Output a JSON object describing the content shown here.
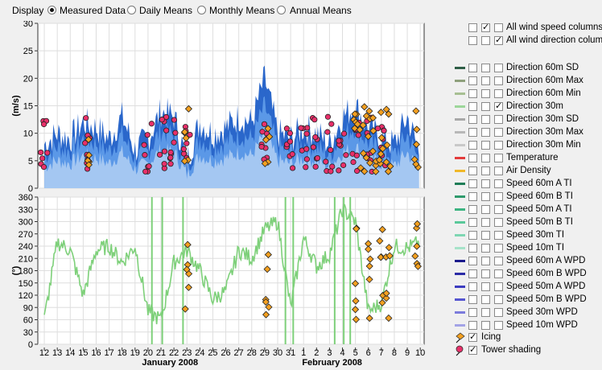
{
  "display": {
    "label": "Display",
    "options": [
      {
        "label": "Measured Data",
        "selected": true
      },
      {
        "label": "Daily Means",
        "selected": false
      },
      {
        "label": "Monthly Means",
        "selected": false
      },
      {
        "label": "Annual Means",
        "selected": false
      }
    ]
  },
  "top_checks": [
    {
      "label": "All wind speed columns",
      "checks": [
        false,
        true,
        false
      ]
    },
    {
      "label": "All wind direction columns",
      "checks": [
        false,
        false,
        true
      ]
    }
  ],
  "legend": [
    {
      "label": "Direction 60m SD",
      "color": "#2e5e46",
      "checks": [
        false,
        false,
        false
      ]
    },
    {
      "label": "Direction 60m Max",
      "color": "#8ea07c",
      "checks": [
        false,
        false,
        false
      ]
    },
    {
      "label": "Direction 60m Min",
      "color": "#a7bf92",
      "checks": [
        false,
        false,
        false
      ]
    },
    {
      "label": "Direction 30m",
      "color": "#9dd69a",
      "checks": [
        false,
        false,
        true
      ]
    },
    {
      "label": "Direction 30m SD",
      "color": "#a8a8a8",
      "checks": [
        false,
        false,
        false
      ]
    },
    {
      "label": "Direction 30m Max",
      "color": "#b8b8b8",
      "checks": [
        false,
        false,
        false
      ]
    },
    {
      "label": "Direction 30m Min",
      "color": "#c8c8c8",
      "checks": [
        false,
        false,
        false
      ]
    },
    {
      "label": "Temperature",
      "color": "#e33b3b",
      "checks": [
        false,
        false,
        false
      ]
    },
    {
      "label": "Air Density",
      "color": "#f0b828",
      "checks": [
        false,
        false,
        false
      ]
    },
    {
      "label": "Speed 60m A TI",
      "color": "#1e7d57",
      "checks": [
        false,
        false,
        false
      ]
    },
    {
      "label": "Speed 60m B TI",
      "color": "#2f9a6c",
      "checks": [
        false,
        false,
        false
      ]
    },
    {
      "label": "Speed 50m A TI",
      "color": "#3db482",
      "checks": [
        false,
        false,
        false
      ]
    },
    {
      "label": "Speed 50m B TI",
      "color": "#5ac89a",
      "checks": [
        false,
        false,
        false
      ]
    },
    {
      "label": "Speed 30m TI",
      "color": "#7ed6b2",
      "checks": [
        false,
        false,
        false
      ]
    },
    {
      "label": "Speed 10m TI",
      "color": "#a6e3c9",
      "checks": [
        false,
        false,
        false
      ]
    },
    {
      "label": "Speed 60m A WPD",
      "color": "#1a1a8c",
      "checks": [
        false,
        false,
        false
      ]
    },
    {
      "label": "Speed 60m B WPD",
      "color": "#2b2ba6",
      "checks": [
        false,
        false,
        false
      ]
    },
    {
      "label": "Speed 50m A WPD",
      "color": "#3c3cc0",
      "checks": [
        false,
        false,
        false
      ]
    },
    {
      "label": "Speed 50m B WPD",
      "color": "#5656d0",
      "checks": [
        false,
        false,
        false
      ]
    },
    {
      "label": "Speed 30m WPD",
      "color": "#7b7bdc",
      "checks": [
        false,
        false,
        false
      ]
    },
    {
      "label": "Speed 10m WPD",
      "color": "#a3a3e6",
      "checks": [
        false,
        false,
        false
      ]
    }
  ],
  "markers": [
    {
      "label": "Icing",
      "color": "#f4a020",
      "checked": true
    },
    {
      "label": "Tower shading",
      "color": "#e8306a",
      "checked": true
    }
  ],
  "chart_data": [
    {
      "type": "line",
      "ylabel": "(m/s)",
      "ylim": [
        0,
        30
      ],
      "yticks": [
        0,
        5,
        10,
        15,
        20,
        25,
        30
      ],
      "x": [
        12,
        13,
        14,
        15,
        16,
        17,
        18,
        19,
        20,
        21,
        22,
        23,
        24,
        25,
        26,
        27,
        28,
        29,
        30,
        31,
        32,
        33,
        34,
        35,
        36,
        37,
        38,
        39,
        40,
        41
      ],
      "series": [
        {
          "color": "#3a78d8",
          "values": [
            8,
            10,
            9,
            12,
            11,
            9,
            13,
            7,
            9,
            14,
            13,
            5,
            12,
            10,
            11,
            13,
            12,
            20,
            10,
            9,
            11,
            10,
            8,
            13,
            15,
            11,
            9,
            8,
            13,
            6
          ]
        }
      ],
      "markers": {
        "shading_days": [
          12,
          15.3,
          20,
          21.2,
          22,
          23,
          29,
          31,
          32,
          33,
          34,
          35,
          36,
          37,
          38
        ],
        "icing_days": [
          15.5,
          23,
          29.2,
          36,
          36.5,
          37,
          37.5,
          38,
          38.5,
          40.7
        ]
      }
    },
    {
      "type": "line",
      "ylabel": "(°)",
      "ylim": [
        0,
        360
      ],
      "yticks": [
        0,
        30,
        60,
        90,
        120,
        150,
        180,
        210,
        240,
        270,
        300,
        330,
        360
      ],
      "x": [
        12,
        13,
        14,
        15,
        16,
        17,
        18,
        19,
        20,
        21,
        22,
        23,
        24,
        25,
        26,
        27,
        28,
        29,
        30,
        31,
        32,
        33,
        34,
        35,
        36,
        37,
        38,
        39,
        40,
        41
      ],
      "series": [
        {
          "color": "#7ed07a",
          "values": [
            60,
            250,
            230,
            120,
            230,
            240,
            200,
            240,
            80,
            60,
            200,
            230,
            180,
            110,
            130,
            230,
            210,
            280,
            300,
            90,
            260,
            190,
            220,
            330,
            300,
            80,
            100,
            240,
            235,
            250
          ]
        }
      ],
      "markers": {
        "icing_days": [
          23,
          29.2,
          36,
          37,
          38,
          38.5,
          40.7
        ]
      }
    }
  ],
  "xaxis": {
    "day_labels": [
      "12",
      "13",
      "14",
      "15",
      "16",
      "17",
      "18",
      "19",
      "20",
      "21",
      "22",
      "23",
      "24",
      "25",
      "26",
      "27",
      "28",
      "29",
      "30",
      "31",
      "1",
      "2",
      "3",
      "4",
      "5",
      "6",
      "7",
      "8",
      "9",
      "10"
    ],
    "month_labels": [
      "January 2008",
      "February 2008"
    ]
  }
}
